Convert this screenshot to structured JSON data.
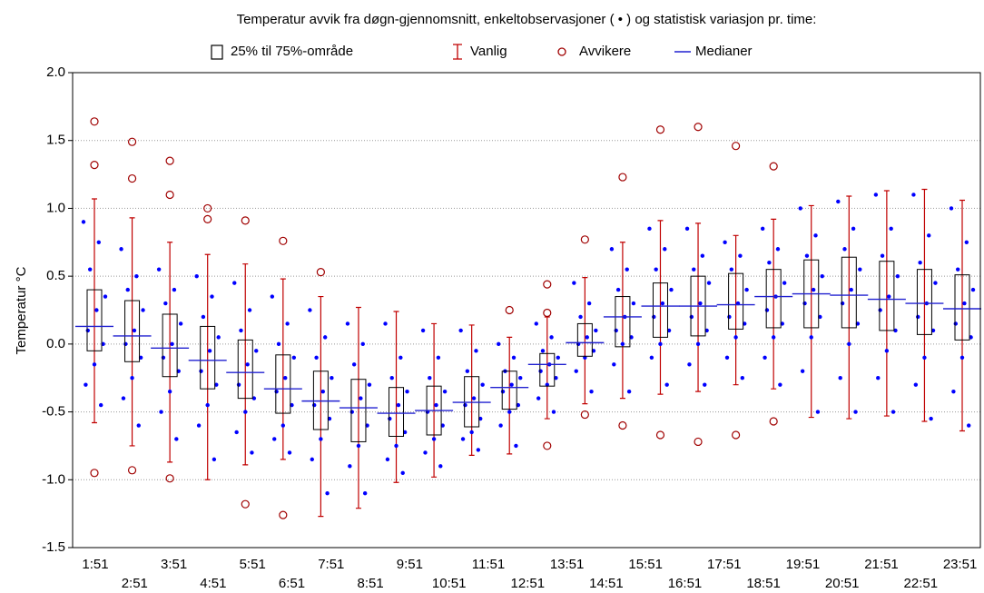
{
  "chart_data": {
    "type": "box",
    "title": "Temperatur avvik fra døgn-gjennomsnitt, enkeltobservasjoner ( • ) og statistisk variasjon pr. time:",
    "legend": {
      "box": "25% til 75%-område",
      "whisker": "Vanlig",
      "outlier": "Avvikere",
      "median": "Medianer"
    },
    "y_label": "Temperatur °C",
    "categories": [
      "1:51",
      "2:51",
      "3:51",
      "4:51",
      "5:51",
      "6:51",
      "7:51",
      "8:51",
      "9:51",
      "10:51",
      "11:51",
      "12:51",
      "13:51",
      "14:51",
      "15:51",
      "16:51",
      "17:51",
      "18:51",
      "19:51",
      "20:51",
      "21:51",
      "22:51",
      "23:51",
      null
    ],
    "q1": [
      -0.05,
      -0.13,
      -0.24,
      -0.33,
      -0.4,
      -0.51,
      -0.63,
      -0.72,
      -0.68,
      -0.67,
      -0.61,
      -0.48,
      -0.31,
      -0.09,
      -0.02,
      0.05,
      0.06,
      0.11,
      0.12,
      0.12,
      0.12,
      0.1,
      0.07,
      0.03
    ],
    "q3": [
      0.4,
      0.32,
      0.22,
      0.13,
      0.03,
      -0.08,
      -0.2,
      -0.26,
      -0.32,
      -0.31,
      -0.24,
      -0.2,
      -0.07,
      0.15,
      0.35,
      0.45,
      0.5,
      0.52,
      0.55,
      0.62,
      0.64,
      0.61,
      0.55,
      0.51
    ],
    "median": [
      0.13,
      0.06,
      -0.03,
      -0.12,
      -0.21,
      -0.33,
      -0.42,
      -0.47,
      -0.51,
      -0.49,
      -0.43,
      -0.32,
      -0.15,
      0.01,
      0.2,
      0.28,
      0.28,
      0.29,
      0.35,
      0.37,
      0.36,
      0.33,
      0.3,
      0.26
    ],
    "whisker_low": [
      -0.58,
      -0.75,
      -0.87,
      -1.0,
      -0.89,
      -0.85,
      -1.27,
      -1.21,
      -1.02,
      -0.98,
      -0.82,
      -0.81,
      -0.55,
      -0.44,
      -0.4,
      -0.37,
      -0.35,
      -0.3,
      -0.33,
      -0.54,
      -0.55,
      -0.53,
      -0.57,
      -0.64
    ],
    "whisker_high": [
      1.07,
      0.93,
      0.75,
      0.66,
      0.59,
      0.48,
      0.35,
      0.27,
      0.24,
      0.15,
      0.14,
      0.05,
      0.2,
      0.49,
      0.75,
      0.91,
      0.89,
      0.8,
      0.92,
      1.02,
      1.09,
      1.13,
      1.14,
      1.06
    ],
    "outliers": [
      [
        1.32,
        1.64,
        -0.95
      ],
      [
        1.22,
        1.49,
        -0.93
      ],
      [
        1.1,
        1.35,
        -0.99
      ],
      [
        0.92,
        1.0
      ],
      [
        0.91,
        -1.18
      ],
      [
        0.76,
        -1.26
      ],
      [
        0.53
      ],
      [],
      [],
      [],
      [],
      [
        0.25
      ],
      [
        0.44,
        0.23,
        -0.75
      ],
      [
        0.77,
        -0.52
      ],
      [
        1.23,
        -0.6
      ],
      [
        1.58,
        -0.67
      ],
      [
        1.6,
        -0.72
      ],
      [
        1.46,
        -0.67
      ],
      [
        1.31,
        -0.57
      ],
      [],
      [],
      [],
      [],
      []
    ],
    "observations": [
      [
        0.9,
        0.75,
        0.55,
        0.35,
        0.25,
        0.1,
        0.0,
        -0.15,
        -0.3,
        -0.45
      ],
      [
        0.7,
        0.5,
        0.4,
        0.25,
        0.1,
        0.0,
        -0.1,
        -0.25,
        -0.4,
        -0.6
      ],
      [
        0.55,
        0.4,
        0.3,
        0.15,
        0.0,
        -0.1,
        -0.2,
        -0.35,
        -0.5,
        -0.7
      ],
      [
        0.5,
        0.35,
        0.2,
        0.05,
        -0.05,
        -0.2,
        -0.3,
        -0.45,
        -0.6,
        -0.85
      ],
      [
        0.45,
        0.25,
        0.1,
        -0.05,
        -0.15,
        -0.3,
        -0.4,
        -0.5,
        -0.65,
        -0.8
      ],
      [
        0.35,
        0.15,
        0.0,
        -0.1,
        -0.25,
        -0.35,
        -0.45,
        -0.6,
        -0.7,
        -0.8
      ],
      [
        0.25,
        0.05,
        -0.1,
        -0.25,
        -0.35,
        -0.45,
        -0.55,
        -0.7,
        -0.85,
        -1.1
      ],
      [
        0.15,
        0.0,
        -0.15,
        -0.3,
        -0.4,
        -0.5,
        -0.6,
        -0.75,
        -0.9,
        -1.1
      ],
      [
        0.15,
        -0.1,
        -0.25,
        -0.35,
        -0.45,
        -0.55,
        -0.65,
        -0.75,
        -0.85,
        -0.95
      ],
      [
        0.1,
        -0.1,
        -0.25,
        -0.35,
        -0.45,
        -0.5,
        -0.6,
        -0.7,
        -0.8,
        -0.9
      ],
      [
        0.1,
        -0.05,
        -0.2,
        -0.3,
        -0.4,
        -0.45,
        -0.55,
        -0.65,
        -0.7,
        -0.78
      ],
      [
        0.0,
        -0.1,
        -0.2,
        -0.25,
        -0.3,
        -0.35,
        -0.45,
        -0.5,
        -0.6,
        -0.75
      ],
      [
        0.15,
        0.05,
        -0.05,
        -0.1,
        -0.15,
        -0.2,
        -0.25,
        -0.3,
        -0.4,
        -0.5
      ],
      [
        0.45,
        0.3,
        0.2,
        0.1,
        0.05,
        0.0,
        -0.05,
        -0.1,
        -0.2,
        -0.35
      ],
      [
        0.7,
        0.55,
        0.4,
        0.3,
        0.2,
        0.1,
        0.05,
        0.0,
        -0.15,
        -0.35
      ],
      [
        0.85,
        0.7,
        0.55,
        0.4,
        0.3,
        0.2,
        0.1,
        0.0,
        -0.1,
        -0.3
      ],
      [
        0.85,
        0.65,
        0.55,
        0.45,
        0.3,
        0.2,
        0.1,
        0.0,
        -0.15,
        -0.3
      ],
      [
        0.75,
        0.65,
        0.55,
        0.4,
        0.3,
        0.2,
        0.15,
        0.05,
        -0.1,
        -0.25
      ],
      [
        0.85,
        0.7,
        0.6,
        0.45,
        0.35,
        0.25,
        0.15,
        0.05,
        -0.1,
        -0.3
      ],
      [
        1.0,
        0.8,
        0.65,
        0.5,
        0.4,
        0.3,
        0.2,
        0.05,
        -0.2,
        -0.5
      ],
      [
        1.05,
        0.85,
        0.7,
        0.55,
        0.4,
        0.3,
        0.15,
        0.0,
        -0.25,
        -0.5
      ],
      [
        1.1,
        0.85,
        0.65,
        0.5,
        0.35,
        0.25,
        0.1,
        -0.05,
        -0.25,
        -0.5
      ],
      [
        1.1,
        0.8,
        0.6,
        0.45,
        0.3,
        0.2,
        0.1,
        -0.1,
        -0.3,
        -0.55
      ],
      [
        1.0,
        0.75,
        0.55,
        0.4,
        0.3,
        0.15,
        0.05,
        -0.1,
        -0.35,
        -0.6
      ]
    ],
    "colors": {
      "box": "#000000",
      "whisker": "#c00000",
      "outlier": "#a00000",
      "median": "#2020d0",
      "observation": "#0000ff"
    },
    "ylim": [
      -1.5,
      2.0
    ],
    "yticks": [
      {
        "value": -1.5,
        "label": "-1.5"
      },
      {
        "value": -1.0,
        "label": "-1.0"
      },
      -0.5,
      {
        "value": 0,
        "label": "0.0"
      },
      0.5,
      {
        "value": 1.0,
        "label": "1.0"
      },
      1.5,
      {
        "value": 2.0,
        "label": "2.0"
      }
    ],
    "grid": true
  }
}
